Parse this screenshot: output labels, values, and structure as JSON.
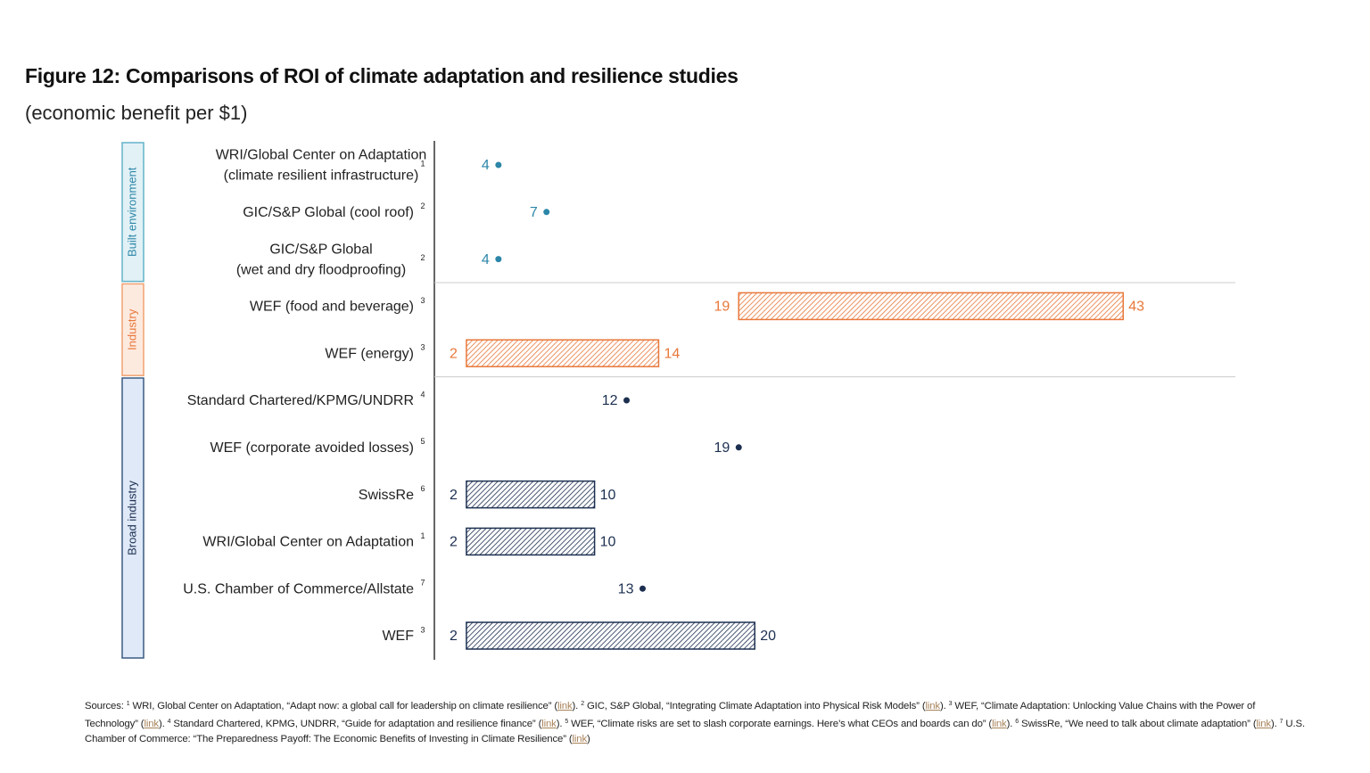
{
  "chart_data": {
    "type": "range-dot",
    "title": "Figure 12: Comparisons of ROI of climate adaptation and resilience studies",
    "subtitle": "(economic benefit per $1)",
    "xlim": [
      0,
      50
    ],
    "groups": [
      {
        "name": "Built environment",
        "color": "#2b86a8",
        "box_fill": "#e2f1f6",
        "box_stroke": "#62b4ca",
        "rows": [
          {
            "label": [
              "WRI/Global Center on Adaptation",
              "(climate resilient infrastructure)"
            ],
            "note": "1",
            "value": 4
          },
          {
            "label": [
              "GIC/S&P Global (cool roof)"
            ],
            "note": "2",
            "value": 7
          },
          {
            "label": [
              "GIC/S&P Global",
              "(wet and dry floodproofing)"
            ],
            "note": "2",
            "value": 4
          }
        ]
      },
      {
        "name": "Industry",
        "color": "#e8773a",
        "box_fill": "#fdeadf",
        "box_stroke": "#f0a272",
        "rows": [
          {
            "label": [
              "WEF (food and beverage)"
            ],
            "note": "3",
            "low": 19,
            "high": 43
          },
          {
            "label": [
              "WEF (energy)"
            ],
            "note": "3",
            "low": 2,
            "high": 14
          }
        ]
      },
      {
        "name": "Broad industry",
        "color": "#1c2f50",
        "box_fill": "#dfe9f8",
        "box_stroke": "#3b5a82",
        "rows": [
          {
            "label": [
              "Standard Chartered/KPMG/UNDRR"
            ],
            "note": "4",
            "value": 12
          },
          {
            "label": [
              "WEF (corporate avoided losses)"
            ],
            "note": "5",
            "value": 19
          },
          {
            "label": [
              "SwissRe"
            ],
            "note": "6",
            "low": 2,
            "high": 10
          },
          {
            "label": [
              "WRI/Global Center on Adaptation"
            ],
            "note": "1",
            "low": 2,
            "high": 10
          },
          {
            "label": [
              "U.S. Chamber of Commerce/Allstate"
            ],
            "note": "7",
            "value": 13
          },
          {
            "label": [
              "WEF"
            ],
            "note": "3",
            "low": 2,
            "high": 20
          }
        ]
      }
    ],
    "sources_label": "Sources:",
    "sources": [
      {
        "note": "1",
        "text": "WRI, Global Center on Adaptation, “Adapt now: a global call for leadership on climate resilience” (",
        "link": "link",
        "end": ")."
      },
      {
        "note": "2",
        "text": "GIC, S&P Global, “Integrating Climate Adaptation into Physical Risk Models” (",
        "link": "link",
        "end": ")."
      },
      {
        "note": "3",
        "text": "WEF, “Climate Adaptation: Unlocking Value Chains with the Power of Technology” (",
        "link": "link",
        "end": ")."
      },
      {
        "note": "4",
        "text": "Standard Chartered, KPMG, UNDRR, “Guide for adaptation and resilience finance” (",
        "link": "link",
        "end": ")."
      },
      {
        "note": "5",
        "text": "WEF, “Climate risks are set to slash corporate earnings. Here’s what CEOs and boards can do” (",
        "link": "link",
        "end": ")."
      },
      {
        "note": "6",
        "text": "SwissRe, “We need to talk about climate adaptation” (",
        "link": "link",
        "end": ")."
      },
      {
        "note": "7",
        "text": "U.S. Chamber of Commerce: “The Preparedness Payoff: The Economic Benefits of Investing in Climate Resilience” (",
        "link": "link",
        "end": ")"
      }
    ]
  }
}
